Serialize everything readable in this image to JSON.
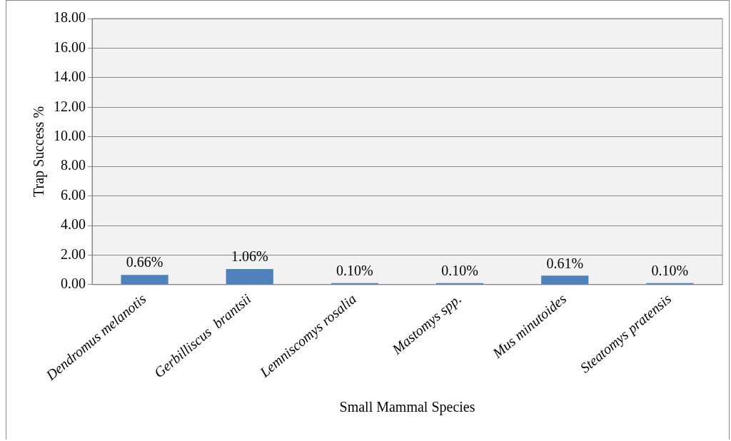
{
  "chart_data": {
    "type": "bar",
    "xlabel": "Small Mammal Species",
    "ylabel": "Trap Success %",
    "categories": [
      "Dendromus melanotis",
      "Gerbilliscus  brantsii",
      "Lemniscomys rosalia",
      "Mastomys spp.",
      "Mus minutoides",
      "Steatomys pratensis"
    ],
    "values": [
      0.66,
      1.06,
      0.1,
      0.1,
      0.61,
      0.1
    ],
    "value_labels": [
      "0.66%",
      "1.06%",
      "0.10%",
      "0.10%",
      "0.61%",
      "0.10%"
    ],
    "color": "#4f81bd",
    "ylim": [
      0,
      18
    ],
    "yticks": [
      {
        "value": 0,
        "label": "0.00"
      },
      {
        "value": 2,
        "label": "2.00"
      },
      {
        "value": 4,
        "label": "4.00"
      },
      {
        "value": 6,
        "label": "6.00"
      },
      {
        "value": 8,
        "label": "8.00"
      },
      {
        "value": 10,
        "label": "10.00"
      },
      {
        "value": 12,
        "label": "12.00"
      },
      {
        "value": 14,
        "label": "14.00"
      },
      {
        "value": 16,
        "label": "16.00"
      },
      {
        "value": 18,
        "label": "18.00"
      }
    ],
    "grid": "y",
    "legend": false
  }
}
